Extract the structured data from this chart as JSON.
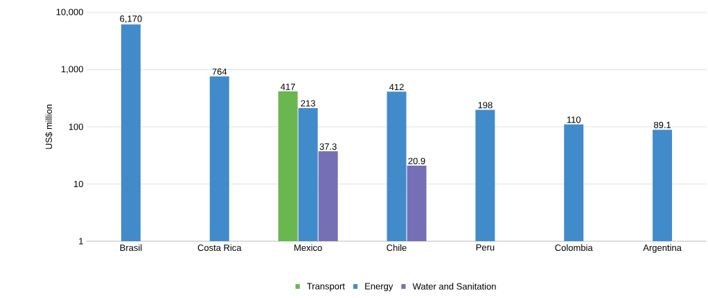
{
  "chart_data": {
    "type": "bar",
    "ylabel": "US$ million",
    "categories": [
      "Brasil",
      "Costa Rica",
      "Mexico",
      "Chile",
      "Peru",
      "Colombia",
      "Argentina"
    ],
    "series": [
      {
        "name": "Transport",
        "color": "#6ab750",
        "values": [
          null,
          null,
          417,
          null,
          null,
          null,
          null
        ],
        "value_labels": [
          null,
          null,
          "417",
          null,
          null,
          null,
          null
        ]
      },
      {
        "name": "Energy",
        "color": "#428bcb",
        "values": [
          6170,
          764,
          213,
          412,
          198,
          110,
          89.1
        ],
        "value_labels": [
          "6,170",
          "764",
          "213",
          "412",
          "198",
          "110",
          "89.1"
        ]
      },
      {
        "name": "Water and Sanitation",
        "color": "#7570b6",
        "values": [
          null,
          null,
          37.3,
          20.9,
          null,
          null,
          null
        ],
        "value_labels": [
          null,
          null,
          "37.3",
          "20.9",
          null,
          null,
          null
        ]
      }
    ],
    "log": "y",
    "ylim": [
      1,
      10000
    ],
    "yticks": [
      1,
      10,
      100,
      {
        "value": 1000,
        "label": "1,000"
      },
      {
        "value": 10000,
        "label": "10,000"
      }
    ],
    "grid": "y",
    "legend": "bottom"
  }
}
